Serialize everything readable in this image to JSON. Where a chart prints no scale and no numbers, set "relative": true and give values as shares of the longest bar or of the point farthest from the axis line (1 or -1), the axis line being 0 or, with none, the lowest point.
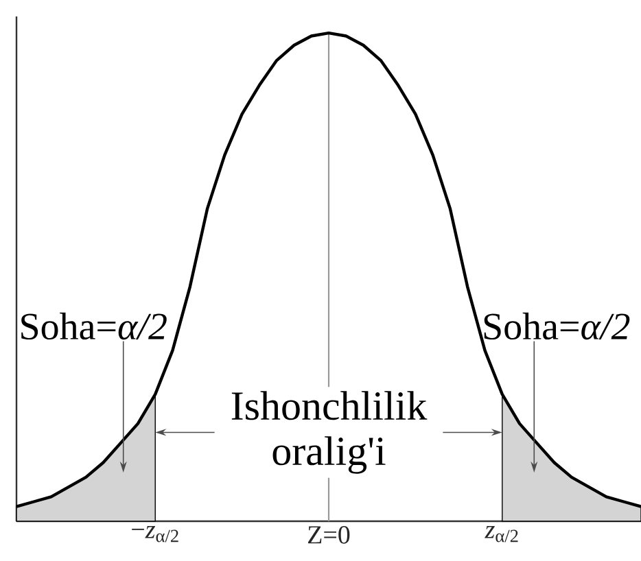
{
  "chart_data": {
    "type": "line",
    "relative": true,
    "categories": [
      null,
      null,
      null,
      null,
      null,
      null,
      null,
      null,
      "−*z*$_{α/2}$",
      null,
      null,
      null,
      null,
      null,
      null,
      null,
      null,
      null,
      "Z=0",
      null,
      null,
      null,
      null,
      null,
      null,
      null,
      null,
      null,
      "*z*$_{α/2}$",
      null,
      null,
      null,
      null,
      null,
      null,
      null,
      null
    ],
    "series": [
      {
        "color": "#000000",
        "values": [
          0.03,
          0.04,
          0.05,
          0.07,
          0.09,
          0.12,
          0.16,
          0.2,
          0.26,
          0.35,
          0.48,
          0.64,
          0.75,
          0.834,
          0.893,
          0.944,
          0.975,
          0.994,
          1,
          0.994,
          0.975,
          0.944,
          0.893,
          0.834,
          0.75,
          0.64,
          0.48,
          0.35,
          0.26,
          0.2,
          0.16,
          0.12,
          0.09,
          0.07,
          0.05,
          0.04,
          0.03
        ]
      },
      {
        "type": "area",
        "color": "#d4d4d4",
        "values": [
          0.03,
          0.04,
          0.05,
          0.07,
          0.09,
          0.12,
          0.16,
          0.2,
          0.26,
          null,
          null,
          null,
          null,
          null,
          null,
          null,
          null,
          null,
          null,
          null,
          null,
          null,
          null,
          null,
          null,
          null,
          null,
          null,
          null,
          null,
          null,
          null,
          null,
          null,
          null,
          null,
          null
        ]
      },
      {
        "type": "area",
        "color": "#d4d4d4",
        "values": [
          null,
          null,
          null,
          null,
          null,
          null,
          null,
          null,
          null,
          null,
          null,
          null,
          null,
          null,
          null,
          null,
          null,
          null,
          null,
          null,
          null,
          null,
          null,
          null,
          null,
          null,
          null,
          null,
          0.26,
          0.2,
          0.16,
          0.12,
          0.09,
          0.07,
          0.05,
          0.04,
          0.03
        ]
      }
    ],
    "ref_lines": [
      {
        "axis": "x",
        "value": "Z=0",
        "color": "#999999"
      }
    ],
    "annotations": [
      "Soha=*α/2*",
      "Soha=*α/2*",
      "Ishonchlilik oralig'i"
    ]
  }
}
